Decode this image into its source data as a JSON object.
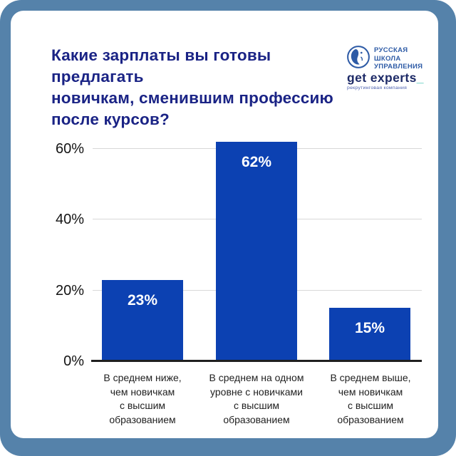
{
  "header": {
    "title_lines": [
      "Какие зарплаты вы готовы предлагать",
      "новичкам, сменившим профессию",
      "после курсов?"
    ],
    "title_color": "#1a2385"
  },
  "logos": {
    "rshu": {
      "lines": [
        "РУССКАЯ",
        "ШКОЛА",
        "УПРАВЛЕНИЯ"
      ],
      "color": "#2e5ba6"
    },
    "get_experts": {
      "wordmark": "get experts",
      "underscore": "_",
      "tagline": "рекрутинговая компания",
      "wordmark_color": "#1d2a67",
      "underscore_color": "#3fc3b3"
    }
  },
  "frame": {
    "border_color": "#5582aa",
    "card_color": "#ffffff"
  },
  "chart_data": {
    "type": "bar",
    "title": "Какие зарплаты вы готовы предлагать новичкам, сменившим профессию после курсов?",
    "categories": [
      "В среднем ниже,\nчем новичкам\nс высшим\nобразованием",
      "В среднем на одном\nуровне с новичками\nс высшим\nобразованием",
      "В среднем выше,\nчем новичкам\nс высшим\nобразованием"
    ],
    "values": [
      23,
      62,
      15
    ],
    "value_labels": [
      "23%",
      "62%",
      "15%"
    ],
    "y_ticks": [
      "60%",
      "40%",
      "20%",
      "0%"
    ],
    "ylim": [
      0,
      65
    ],
    "xlabel": "",
    "ylabel": "",
    "grid": true,
    "legend": false,
    "bar_color": "#0c41b2",
    "gridline_color": "#d8d8d8",
    "axis_color": "#1f1f1f"
  }
}
